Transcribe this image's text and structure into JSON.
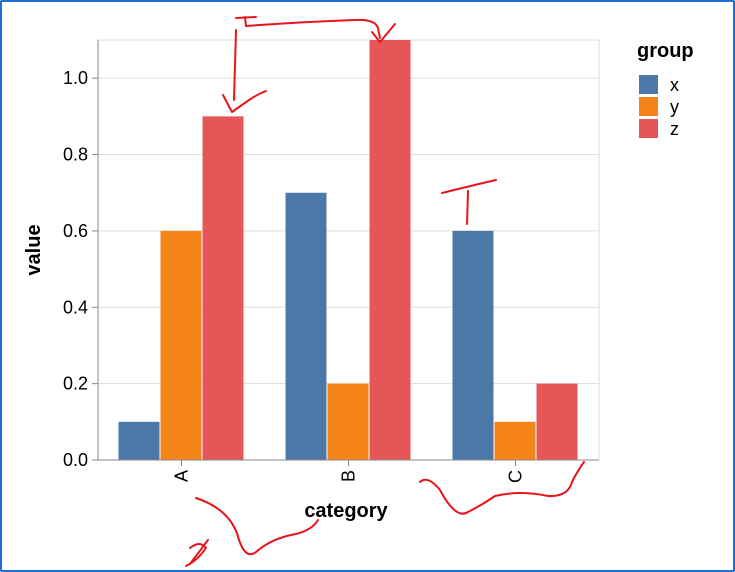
{
  "chart_data": {
    "type": "bar",
    "grouped": true,
    "xlabel": "category",
    "ylabel": "value",
    "categories": [
      "A",
      "B",
      "C"
    ],
    "ylim": [
      0,
      1.1
    ],
    "yticks": [
      "0.0",
      "0.2",
      "0.4",
      "0.6",
      "0.8",
      "1.0"
    ],
    "grid": true,
    "legend": {
      "title": "group",
      "placement": "right"
    },
    "series": [
      {
        "name": "x",
        "color": "#4c78a8",
        "values": [
          0.1,
          0.7,
          0.6
        ]
      },
      {
        "name": "y",
        "color": "#f58518",
        "values": [
          0.6,
          0.2,
          0.1
        ]
      },
      {
        "name": "z",
        "color": "#e45756",
        "values": [
          0.9,
          1.1,
          0.2
        ]
      }
    ]
  },
  "annotation": {
    "color": "#e8141a"
  }
}
